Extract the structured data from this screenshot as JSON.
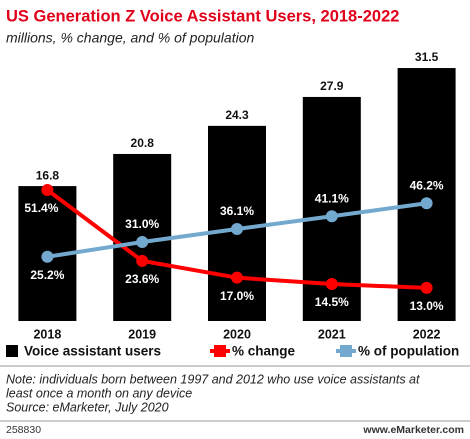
{
  "chart_data": {
    "type": "bar",
    "title": "US Generation Z Voice Assistant Users, 2018-2022",
    "subtitle": "millions, % change, and % of population",
    "categories": [
      "2018",
      "2019",
      "2020",
      "2021",
      "2022"
    ],
    "ylim": [
      0,
      33
    ],
    "y2lim": [
      0,
      104
    ],
    "series": [
      {
        "name": "Voice assistant users",
        "type": "bar",
        "color": "#000000",
        "values": [
          16.8,
          20.8,
          24.3,
          27.9,
          31.5
        ]
      },
      {
        "name": "% change",
        "type": "line",
        "axis": "y2",
        "color": "#ff0000",
        "values": [
          51.4,
          23.6,
          17.0,
          14.5,
          13.0
        ],
        "value_labels": [
          "51.4%",
          "23.6%",
          "17.0%",
          "14.5%",
          "13.0%"
        ]
      },
      {
        "name": "% of population",
        "type": "line",
        "axis": "y2",
        "color": "#74a9cf",
        "values": [
          25.2,
          31.0,
          36.1,
          41.1,
          46.2
        ],
        "value_labels": [
          "25.2%",
          "31.0%",
          "36.1%",
          "41.1%",
          "46.2%"
        ]
      }
    ],
    "notes": [
      "Note: individuals born between 1997 and 2012 who use voice assistants at",
      "least once a month on any device",
      "Source: eMarketer, July 2020"
    ],
    "footer_id": "258830",
    "footer_source": "www.eMarketer.com"
  }
}
